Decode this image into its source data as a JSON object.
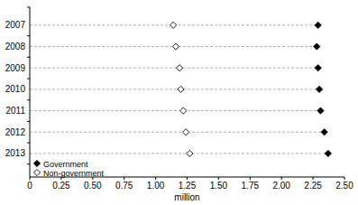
{
  "chart_data": {
    "type": "dot",
    "orientation": "horizontal",
    "categories": [
      "2007",
      "2008",
      "2009",
      "2010",
      "2011",
      "2012",
      "2013"
    ],
    "series": [
      {
        "name": "Government",
        "color": "#000000",
        "marker": "diamond",
        "values": [
          2.29,
          2.28,
          2.29,
          2.3,
          2.31,
          2.34,
          2.37
        ]
      },
      {
        "name": "Non-government",
        "color": "#000000",
        "marker": "diamond-open",
        "values": [
          1.14,
          1.16,
          1.19,
          1.2,
          1.22,
          1.24,
          1.27
        ]
      }
    ],
    "xlabel": "million",
    "xlim": [
      0,
      2.5
    ],
    "xticks": [
      0,
      0.25,
      {
        "value": 0.5,
        "label": "0.50"
      },
      0.75,
      {
        "value": 1,
        "label": "1.00"
      },
      1.25,
      {
        "value": 1.5,
        "label": "1.50"
      },
      1.75,
      {
        "value": 2,
        "label": "2.00"
      },
      2.25,
      {
        "value": 2.5,
        "label": "2.50"
      }
    ],
    "grid": true,
    "legend": "lower left"
  }
}
